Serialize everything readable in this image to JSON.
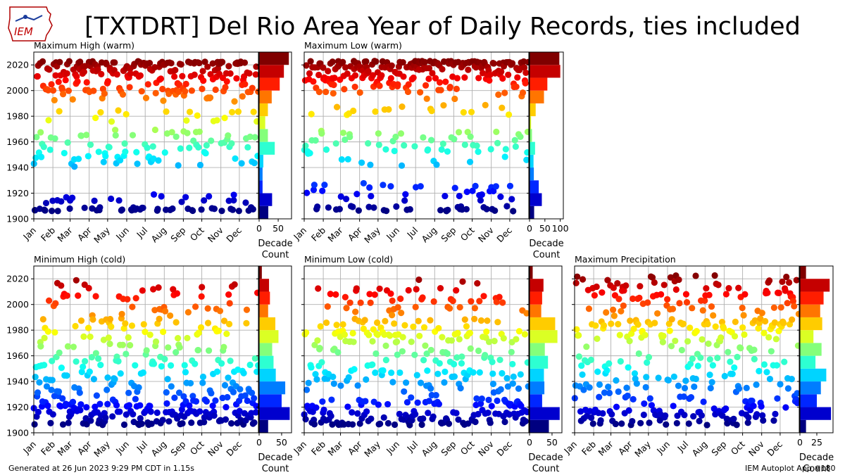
{
  "header": {
    "title": "[TXTDRT] Del Rio Area Year of Daily Records, ties included",
    "logo_text": "IEM"
  },
  "footer": {
    "generated": "Generated at 26 Jun 2023 9:29 PM CDT in 1.15s",
    "credit": "IEM Autoplot App #180"
  },
  "chart_data": [
    {
      "type": "scatter",
      "title": "Maximum High (warm)",
      "ylim": [
        1900,
        2030
      ],
      "yticks": [
        1900,
        1920,
        1940,
        1960,
        1980,
        2000,
        2020
      ],
      "months": [
        "Jan",
        "Feb",
        "Mar",
        "Apr",
        "May",
        "Jun",
        "Jul",
        "Aug",
        "Sep",
        "Oct",
        "Nov",
        "Dec"
      ],
      "decade_count": {
        "xlabel": "Decade\nCount",
        "xlim": [
          0,
          85
        ],
        "xticks": [
          0,
          50
        ],
        "decades": [
          1900,
          1910,
          1920,
          1930,
          1940,
          1950,
          1960,
          1970,
          1980,
          1990,
          2000,
          2010,
          2020
        ],
        "values": [
          24,
          34,
          9,
          9,
          11,
          41,
          23,
          16,
          23,
          33,
          54,
          65,
          78
        ]
      },
      "point_model": {
        "seed": 11,
        "cx": [
          1905,
          1915,
          1945,
          1955,
          1965,
          1980,
          1996,
          2003,
          2012,
          2017,
          2023
        ],
        "cw": [
          9,
          5,
          5,
          6,
          5,
          4,
          5,
          8,
          9,
          10,
          12
        ],
        "mode": 2
      }
    },
    {
      "type": "scatter",
      "title": "Maximum Low (warm)",
      "ylim": [
        1900,
        2030
      ],
      "yticks": [
        1900,
        1920,
        1940,
        1960,
        1980,
        2000,
        2020
      ],
      "months": [
        "Jan",
        "Feb",
        "Mar",
        "Apr",
        "May",
        "Jun",
        "Jul",
        "Aug",
        "Sep",
        "Oct",
        "Nov",
        "Dec"
      ],
      "decade_count": {
        "xlabel": "Decade\nCount",
        "xlim": [
          0,
          110
        ],
        "xticks": [
          0,
          50,
          100
        ],
        "decades": [
          1900,
          1910,
          1920,
          1930,
          1940,
          1950,
          1960,
          1970,
          1980,
          1990,
          2000,
          2010,
          2020
        ],
        "values": [
          15,
          40,
          30,
          14,
          13,
          18,
          8,
          5,
          20,
          47,
          58,
          100,
          97
        ]
      },
      "point_model": {
        "seed": 23,
        "cx": [
          1906,
          1918,
          1925,
          1945,
          1955,
          1965,
          1985,
          1998,
          2006,
          2014,
          2022
        ],
        "cw": [
          4,
          4,
          5,
          4,
          4,
          4,
          5,
          4,
          10,
          14,
          22
        ],
        "mode": 1
      }
    },
    {
      "type": "scatter",
      "title": "Minimum High (cold)",
      "ylim": [
        1900,
        2030
      ],
      "yticks": [
        1900,
        1920,
        1940,
        1960,
        1980,
        2000,
        2020
      ],
      "months": [
        "Jan",
        "Feb",
        "Mar",
        "Apr",
        "May",
        "Jun",
        "Jul",
        "Aug",
        "Sep",
        "Oct",
        "Nov",
        "Dec"
      ],
      "decade_count": {
        "xlabel": "Decade\nCount",
        "xlim": [
          0,
          72
        ],
        "xticks": [
          0,
          50
        ],
        "decades": [
          1900,
          1910,
          1920,
          1930,
          1940,
          1950,
          1960,
          1970,
          1980,
          1990,
          2000,
          2010,
          2020
        ],
        "values": [
          20,
          68,
          50,
          58,
          37,
          32,
          29,
          43,
          36,
          20,
          24,
          22,
          6
        ]
      },
      "point_model": {
        "seed": 37,
        "cx": [
          1906,
          1913,
          1918,
          1925,
          1935,
          1945,
          1955,
          1965,
          1975,
          1985,
          1995,
          2005,
          2015
        ],
        "cw": [
          14,
          18,
          12,
          14,
          12,
          10,
          9,
          9,
          10,
          10,
          7,
          7,
          7
        ],
        "mode": 0
      }
    },
    {
      "type": "scatter",
      "title": "Minimum Low (cold)",
      "ylim": [
        1900,
        2030
      ],
      "yticks": [
        1900,
        1920,
        1940,
        1960,
        1980,
        2000,
        2020
      ],
      "months": [
        "Jan",
        "Feb",
        "Mar",
        "Apr",
        "May",
        "Jun",
        "Jul",
        "Aug",
        "Sep",
        "Oct",
        "Nov",
        "Dec"
      ],
      "decade_count": {
        "xlabel": "Decade\nCount",
        "xlim": [
          0,
          72
        ],
        "xticks": [
          0,
          50
        ],
        "decades": [
          1900,
          1910,
          1920,
          1930,
          1940,
          1950,
          1960,
          1970,
          1980,
          1990,
          2000,
          2010,
          2020
        ],
        "values": [
          43,
          67,
          28,
          33,
          32,
          41,
          34,
          62,
          57,
          26,
          28,
          31,
          7
        ]
      },
      "point_model": {
        "seed": 53,
        "cx": [
          1906,
          1913,
          1918,
          1925,
          1935,
          1945,
          1955,
          1965,
          1975,
          1985,
          1995,
          2005,
          2015
        ],
        "cw": [
          14,
          18,
          10,
          10,
          10,
          12,
          10,
          10,
          18,
          16,
          9,
          9,
          8
        ],
        "mode": 0
      }
    },
    {
      "type": "scatter",
      "title": "Maximum Precipitation",
      "ylim": [
        1900,
        2030
      ],
      "yticks": [
        1900,
        1920,
        1940,
        1960,
        1980,
        2000,
        2020
      ],
      "months": [
        "Jan",
        "Feb",
        "Mar",
        "Apr",
        "May",
        "Jun",
        "Jul",
        "Aug",
        "Sep",
        "Oct",
        "Nov",
        "Dec"
      ],
      "decade_count": {
        "xlabel": "Decade\nCount",
        "xlim": [
          0,
          49
        ],
        "xticks": [
          0,
          25
        ],
        "decades": [
          1900,
          1910,
          1920,
          1930,
          1940,
          1950,
          1960,
          1970,
          1980,
          1990,
          2000,
          2010,
          2020
        ],
        "values": [
          9,
          46,
          25,
          31,
          39,
          23,
          32,
          20,
          33,
          30,
          35,
          44,
          9
        ]
      },
      "point_model": {
        "seed": 71,
        "cx": [
          1906,
          1913,
          1918,
          1925,
          1935,
          1945,
          1955,
          1965,
          1975,
          1985,
          1995,
          2005,
          2015,
          2022
        ],
        "cw": [
          8,
          10,
          9,
          9,
          9,
          10,
          10,
          9,
          10,
          10,
          9,
          10,
          10,
          6
        ],
        "mode": 0
      }
    }
  ]
}
